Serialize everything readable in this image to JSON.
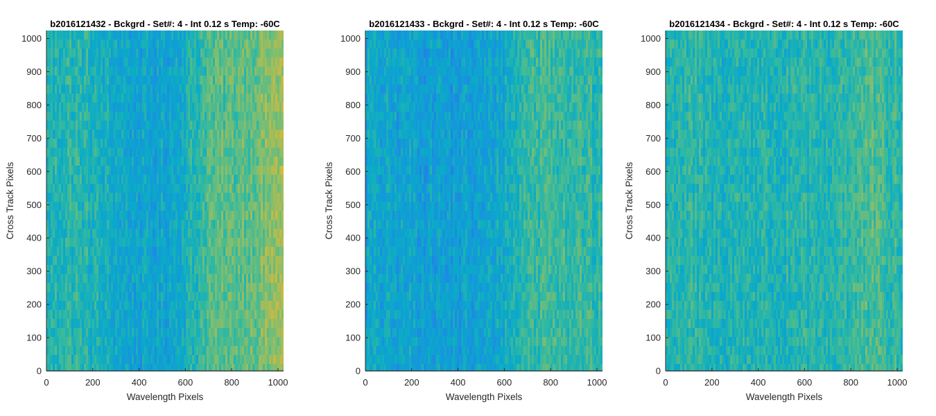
{
  "chart_data": [
    {
      "type": "heatmap",
      "title": "b2016121432 - Bckgrd - Set#: 4 - Int 0.12 s Temp: -60C",
      "xlabel": "Wavelength Pixels",
      "ylabel": "Cross Track Pixels",
      "xlim": [
        0,
        1024
      ],
      "ylim": [
        0,
        1024
      ],
      "xticks": [
        0,
        200,
        400,
        600,
        800,
        1000
      ],
      "yticks": [
        0,
        100,
        200,
        300,
        400,
        500,
        600,
        700,
        800,
        900,
        1000
      ],
      "colormap": "parula",
      "column_profile": {
        "x": [
          0,
          100,
          200,
          300,
          400,
          500,
          600,
          700,
          800,
          900,
          1000,
          1024
        ],
        "level": [
          0.48,
          0.52,
          0.48,
          0.42,
          0.38,
          0.38,
          0.45,
          0.6,
          0.62,
          0.66,
          0.74,
          0.76
        ]
      }
    },
    {
      "type": "heatmap",
      "title": "b2016121433 - Bckgrd - Set#: 4 - Int 0.12 s Temp: -60C",
      "xlabel": "Wavelength Pixels",
      "ylabel": "Cross Track Pixels",
      "xlim": [
        0,
        1024
      ],
      "ylim": [
        0,
        1024
      ],
      "xticks": [
        0,
        200,
        400,
        600,
        800,
        1000
      ],
      "yticks": [
        0,
        100,
        200,
        300,
        400,
        500,
        600,
        700,
        800,
        900,
        1000
      ],
      "colormap": "parula",
      "column_profile": {
        "x": [
          0,
          100,
          200,
          300,
          400,
          500,
          600,
          700,
          800,
          900,
          1000,
          1024
        ],
        "level": [
          0.4,
          0.38,
          0.38,
          0.36,
          0.35,
          0.36,
          0.42,
          0.55,
          0.58,
          0.55,
          0.52,
          0.5
        ]
      }
    },
    {
      "type": "heatmap",
      "title": "b2016121434 - Bckgrd - Set#: 4 - Int 0.12 s Temp: -60C",
      "xlabel": "Wavelength Pixels",
      "ylabel": "Cross Track Pixels",
      "xlim": [
        0,
        1024
      ],
      "ylim": [
        0,
        1024
      ],
      "xticks": [
        0,
        200,
        400,
        600,
        800,
        1000
      ],
      "yticks": [
        0,
        100,
        200,
        300,
        400,
        500,
        600,
        700,
        800,
        900,
        1000
      ],
      "colormap": "parula",
      "column_profile": {
        "x": [
          0,
          100,
          200,
          300,
          400,
          500,
          600,
          700,
          800,
          900,
          1000,
          1024
        ],
        "level": [
          0.5,
          0.52,
          0.48,
          0.5,
          0.5,
          0.48,
          0.5,
          0.5,
          0.55,
          0.58,
          0.52,
          0.5
        ]
      }
    }
  ]
}
